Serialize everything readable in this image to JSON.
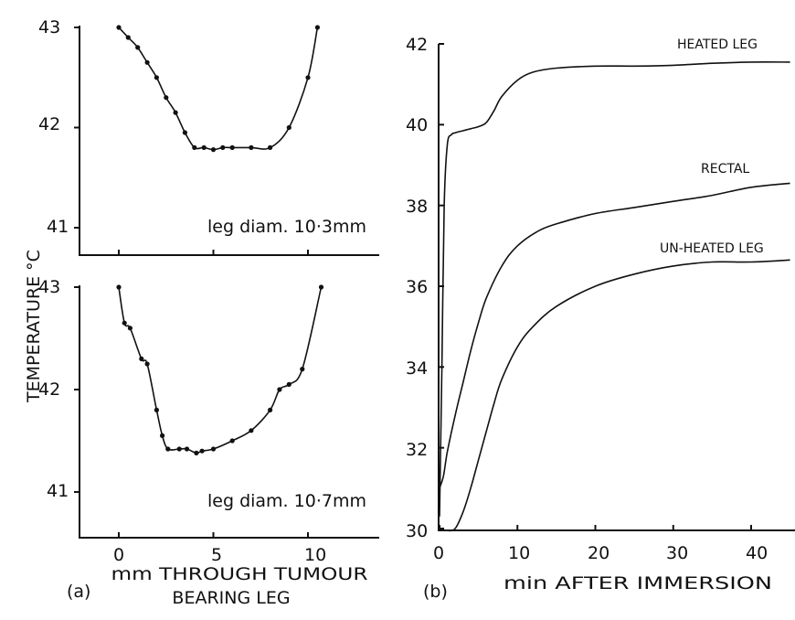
{
  "chart_data": [
    {
      "type": "line",
      "panel": "a-top",
      "annotation": "leg diam. 10·3mm",
      "xlim": [
        -1.5,
        13
      ],
      "ylim": [
        40.7,
        43
      ],
      "yticks": [
        "43",
        "42",
        "41"
      ],
      "series": [
        {
          "x": [
            0,
            0.5,
            1,
            1.5,
            2,
            2.5,
            3,
            3.5,
            4,
            4.5,
            5,
            5.5,
            6,
            7,
            8,
            9,
            10,
            10.5
          ],
          "y": [
            43,
            42.9,
            42.8,
            42.65,
            42.5,
            42.3,
            42.15,
            41.95,
            41.8,
            41.8,
            41.78,
            41.8,
            41.8,
            41.8,
            41.8,
            42.0,
            42.5,
            43
          ]
        }
      ]
    },
    {
      "type": "line",
      "panel": "a-bottom",
      "annotation": "leg diam. 10·7mm",
      "xlim": [
        -1.5,
        13
      ],
      "ylim": [
        40.6,
        43
      ],
      "xticks": [
        "0",
        "5",
        "10"
      ],
      "yticks": [
        "43",
        "42",
        "41"
      ],
      "xlabel": "mm THROUGH TUMOUR BEARING LEG",
      "ylabel": "TEMPERATURE °C",
      "panel_label": "(a)",
      "series": [
        {
          "x": [
            0,
            0.3,
            0.6,
            1.2,
            1.5,
            2,
            2.3,
            2.6,
            3.2,
            3.6,
            4.1,
            4.4,
            5,
            6,
            7,
            8,
            8.5,
            9,
            9.7,
            10.7
          ],
          "y": [
            43,
            42.65,
            42.6,
            42.3,
            42.25,
            41.8,
            41.55,
            41.42,
            41.42,
            41.42,
            41.38,
            41.4,
            41.42,
            41.5,
            41.6,
            41.8,
            42.0,
            42.05,
            42.2,
            43
          ]
        }
      ]
    },
    {
      "type": "line",
      "panel": "b",
      "panel_label": "(b)",
      "xlabel": "min AFTER IMMERSION",
      "xlim": [
        0,
        45
      ],
      "ylim": [
        30,
        42
      ],
      "xticks": [
        "0",
        "10",
        "20",
        "30",
        "40"
      ],
      "yticks": [
        "42",
        "40",
        "38",
        "36",
        "34",
        "32",
        "30"
      ],
      "series": [
        {
          "name": "HEATED LEG",
          "x": [
            0,
            0.3,
            0.6,
            1,
            1.5,
            2,
            3,
            4,
            5,
            6,
            7,
            8,
            10,
            12,
            15,
            20,
            25,
            30,
            35,
            40,
            45
          ],
          "y": [
            30.3,
            34,
            38,
            39.5,
            39.75,
            39.8,
            39.85,
            39.9,
            39.95,
            40.05,
            40.35,
            40.7,
            41.1,
            41.3,
            41.4,
            41.45,
            41.45,
            41.47,
            41.52,
            41.55,
            41.55
          ]
        },
        {
          "name": "RECTAL",
          "x": [
            0,
            0.5,
            1,
            2,
            3,
            4,
            5,
            6,
            8,
            10,
            13,
            16,
            20,
            25,
            30,
            35,
            40,
            45
          ],
          "y": [
            31.0,
            31.3,
            31.9,
            32.8,
            33.6,
            34.4,
            35.1,
            35.7,
            36.5,
            37.0,
            37.4,
            37.6,
            37.8,
            37.95,
            38.1,
            38.25,
            38.45,
            38.55
          ]
        },
        {
          "name": "UN-HEATED LEG",
          "x": [
            0,
            1,
            2,
            3,
            4,
            5,
            6,
            7,
            8,
            10,
            12,
            15,
            20,
            25,
            30,
            35,
            40,
            45
          ],
          "y": [
            30.0,
            29.95,
            30.0,
            30.4,
            31.0,
            31.7,
            32.4,
            33.1,
            33.7,
            34.5,
            35.0,
            35.5,
            36.0,
            36.3,
            36.5,
            36.6,
            36.6,
            36.65
          ]
        }
      ]
    }
  ]
}
